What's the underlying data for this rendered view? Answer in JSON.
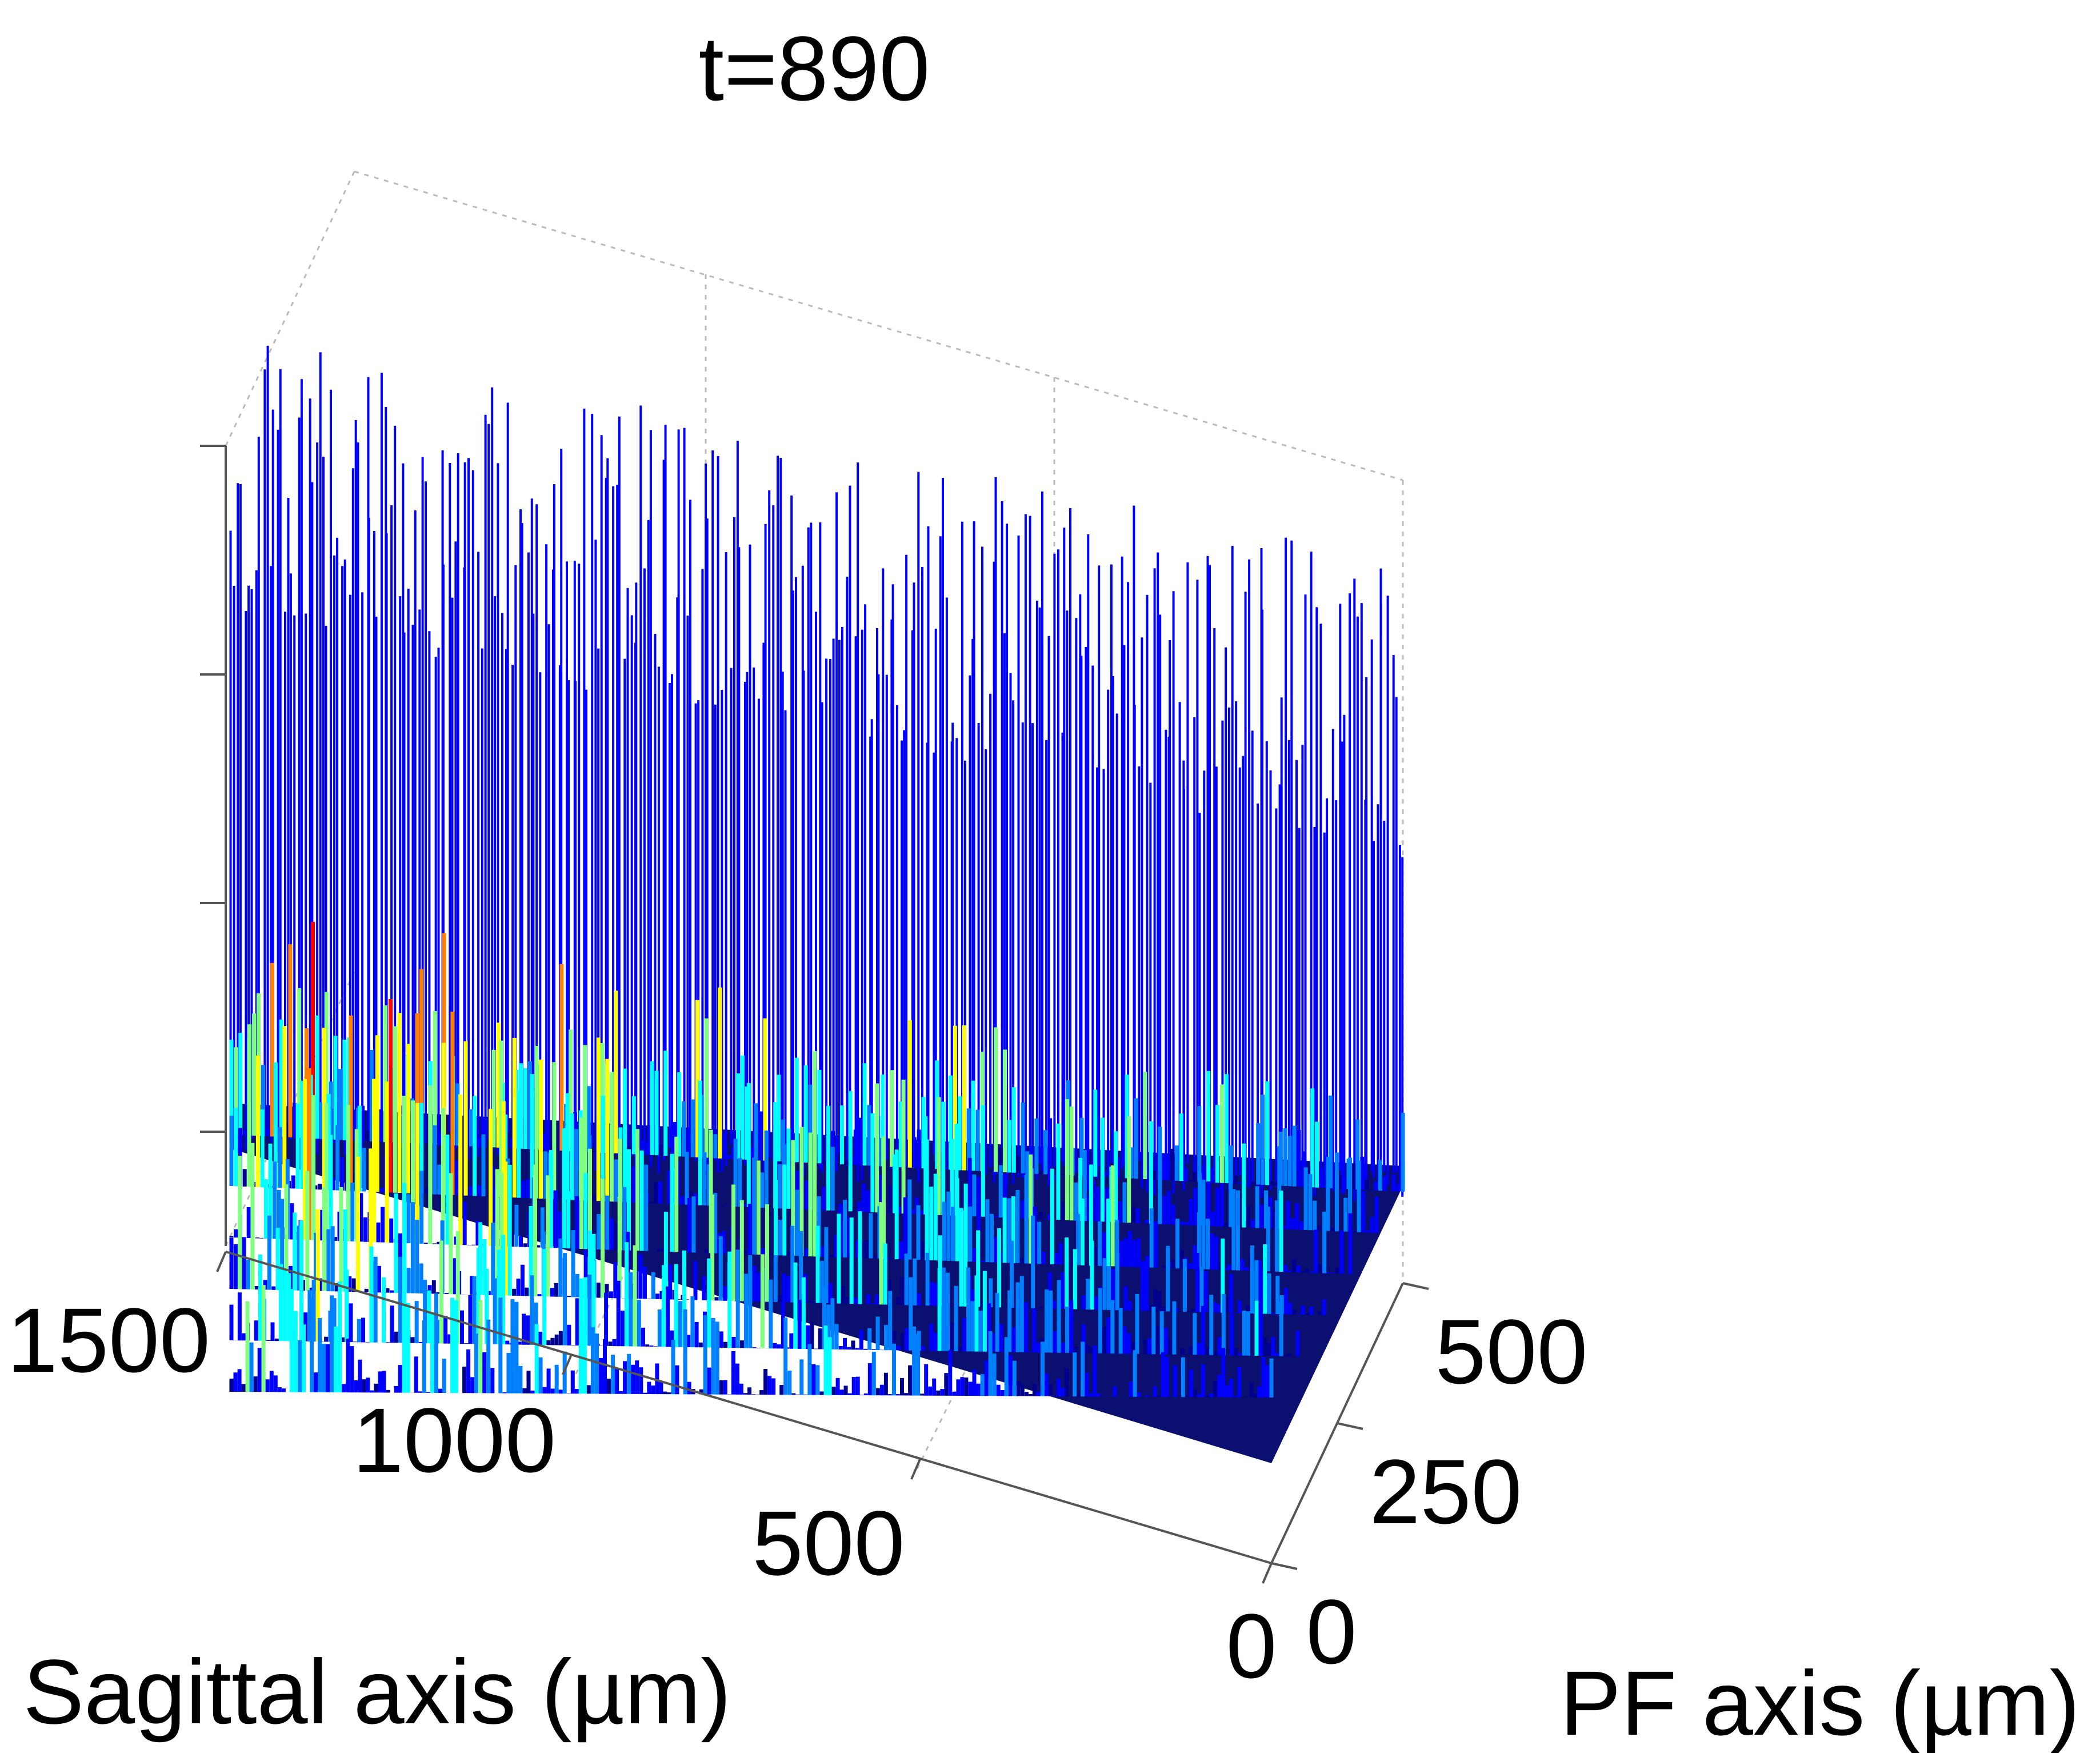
{
  "chart_data": {
    "type": "surface",
    "title": "t=890",
    "xlabel": "Sagittal axis (µm)",
    "ylabel": "PF axis (µm)",
    "zlabel": "",
    "x_ticks": [
      "0",
      "500",
      "1000",
      "1500"
    ],
    "y_ticks": [
      "0",
      "250",
      "500"
    ],
    "z_ticks": [],
    "xlim": [
      0,
      1500
    ],
    "ylim": [
      0,
      500
    ],
    "grid": true,
    "view": "3d-perspective",
    "colormap": [
      "#00008f",
      "#0000ff",
      "#0080ff",
      "#00ffff",
      "#80ff80",
      "#ffff00",
      "#ff8000",
      "#ff0000"
    ],
    "description_free": true
  },
  "colors": {
    "spike": "#0000ff",
    "base": "#0a0f70",
    "axis": "#555555",
    "grid": "#bbbbbb"
  }
}
